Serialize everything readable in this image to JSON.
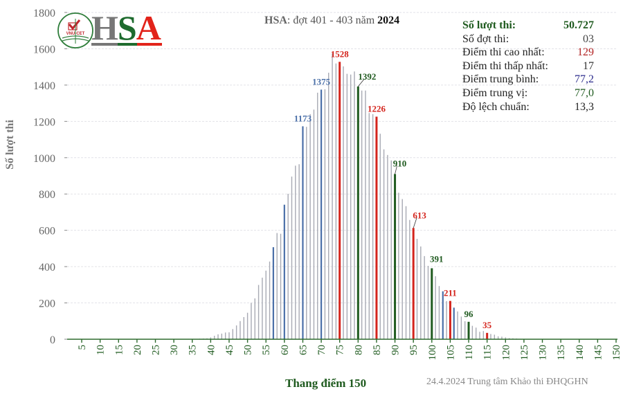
{
  "logo": {
    "text": "HSA",
    "badge_text": "VNU-CET",
    "colors": [
      "#777777",
      "#1e6b2e",
      "#e2231a"
    ]
  },
  "title": {
    "prefix": "HSA",
    "middle": ": đợt 401 - 403 năm ",
    "year": "2024"
  },
  "stats": [
    {
      "label": "Số lượt thi:",
      "value": "50.727",
      "color": "#1e5a1e"
    },
    {
      "label": "Số đợt thi:",
      "value": "03",
      "color": "#444444"
    },
    {
      "label": "Điểm thi cao nhất:",
      "value": "129",
      "color": "#b22222"
    },
    {
      "label": "Điểm thi thấp nhất:",
      "value": "17",
      "color": "#333333"
    },
    {
      "label": "Điểm trung bình:",
      "value": "77,2",
      "color": "#2b2b8c"
    },
    {
      "label": "Điểm trung vị:",
      "value": "77,0",
      "color": "#1e5a1e"
    },
    {
      "label": "Độ lệch chuẩn:",
      "value": "13,3",
      "color": "#222222"
    }
  ],
  "footer": "24.4.2024 Trung tâm Khảo thi ĐHQGHN",
  "chart_data": {
    "type": "bar",
    "title": "HSA: đợt 401 - 403 năm 2024",
    "xlabel": "Thang điểm 150",
    "ylabel": "Số lượt thi",
    "xlim": [
      0,
      150
    ],
    "ylim": [
      0,
      1800
    ],
    "grid": true,
    "x_ticks": [
      5,
      10,
      15,
      20,
      25,
      30,
      35,
      40,
      45,
      50,
      55,
      60,
      65,
      70,
      75,
      80,
      85,
      90,
      95,
      100,
      105,
      110,
      115,
      120,
      125,
      130,
      135,
      140,
      145,
      150
    ],
    "y_ticks": [
      0,
      200,
      400,
      600,
      800,
      1000,
      1200,
      1400,
      1600,
      1800
    ],
    "colors": {
      "default": "#a7a9b3",
      "red": "#d4241c",
      "green": "#1f5a1f",
      "blue": "#4a6fa8",
      "axis": "#2e6b2e"
    },
    "x": [
      17,
      18,
      19,
      20,
      21,
      22,
      23,
      24,
      25,
      26,
      27,
      28,
      29,
      30,
      31,
      32,
      33,
      34,
      35,
      36,
      37,
      38,
      39,
      40,
      41,
      42,
      43,
      44,
      45,
      46,
      47,
      48,
      49,
      50,
      51,
      52,
      53,
      54,
      55,
      56,
      57,
      58,
      59,
      60,
      61,
      62,
      63,
      64,
      65,
      66,
      67,
      68,
      69,
      70,
      71,
      72,
      73,
      74,
      75,
      76,
      77,
      78,
      79,
      80,
      81,
      82,
      83,
      84,
      85,
      86,
      87,
      88,
      89,
      90,
      91,
      92,
      93,
      94,
      95,
      96,
      97,
      98,
      99,
      100,
      101,
      102,
      103,
      104,
      105,
      106,
      107,
      108,
      109,
      110,
      111,
      112,
      113,
      114,
      115,
      116,
      117,
      118,
      119,
      120,
      121,
      122,
      123,
      124,
      125,
      126,
      127,
      128,
      129
    ],
    "values": [
      1,
      1,
      1,
      1,
      1,
      1,
      1,
      1,
      1,
      1,
      1,
      1,
      1,
      1,
      1,
      1,
      1,
      2,
      2,
      2,
      3,
      4,
      5,
      10,
      19,
      27,
      31,
      37,
      38,
      56,
      76,
      100,
      122,
      146,
      200,
      225,
      299,
      339,
      378,
      428,
      507,
      585,
      581,
      741,
      801,
      896,
      956,
      964,
      1173,
      1170,
      1240,
      1265,
      1358,
      1375,
      1377,
      1468,
      1575,
      1519,
      1528,
      1503,
      1462,
      1458,
      1475,
      1392,
      1370,
      1370,
      1246,
      1240,
      1226,
      1132,
      1046,
      1015,
      985,
      910,
      807,
      772,
      733,
      657,
      613,
      553,
      511,
      458,
      404,
      391,
      347,
      293,
      264,
      210,
      211,
      174,
      153,
      125,
      99,
      96,
      74,
      64,
      41,
      45,
      35,
      29,
      25,
      16,
      14,
      10,
      6,
      5,
      4,
      2,
      1,
      1,
      1,
      1,
      1
    ],
    "highlight": {
      "57": "blue",
      "60": "blue",
      "65": "blue",
      "70": "blue",
      "75": "red",
      "80": "green",
      "85": "red",
      "90": "green",
      "95": "red",
      "100": "green",
      "103": "blue",
      "105": "red",
      "106": "blue",
      "110": "green",
      "115": "red"
    },
    "data_labels": [
      {
        "x": 65,
        "text": "1173",
        "color": "blue"
      },
      {
        "x": 70,
        "text": "1375",
        "color": "blue"
      },
      {
        "x": 75,
        "text": "1528",
        "color": "red"
      },
      {
        "x": 80,
        "text": "1392",
        "color": "green"
      },
      {
        "x": 85,
        "text": "1226",
        "color": "red"
      },
      {
        "x": 90,
        "text": "910",
        "color": "green"
      },
      {
        "x": 95,
        "text": "613",
        "color": "red"
      },
      {
        "x": 100,
        "text": "391",
        "color": "green"
      },
      {
        "x": 105,
        "text": "211",
        "color": "red"
      },
      {
        "x": 110,
        "text": "96",
        "color": "green"
      },
      {
        "x": 115,
        "text": "35",
        "color": "red"
      }
    ]
  }
}
